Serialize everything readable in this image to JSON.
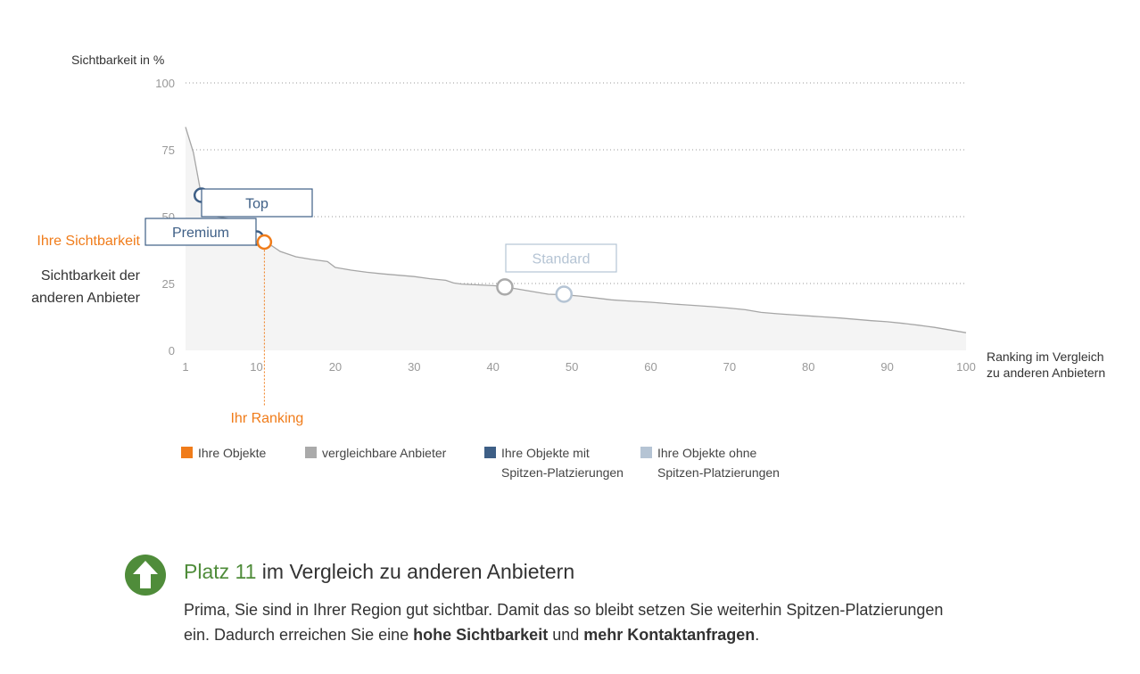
{
  "chart_data": {
    "type": "area",
    "ylabel": "Sichtbarkeit in %",
    "xlabel": "Ranking im Vergleich zu anderen Anbietern",
    "xlabel_lines": [
      "Ranking im Vergleich",
      "zu anderen Anbietern"
    ],
    "ylim": [
      0,
      100
    ],
    "xlim": [
      1,
      100
    ],
    "yticks": [
      0,
      25,
      50,
      75,
      100
    ],
    "xticks": [
      1,
      10,
      20,
      30,
      40,
      50,
      60,
      70,
      80,
      90,
      100
    ],
    "grid": true,
    "legend_position": "bottom",
    "series": [
      {
        "name": "vergleichbare Anbieter",
        "x": [
          1,
          2,
          3,
          4,
          5,
          6,
          7,
          8,
          9,
          10,
          11,
          12,
          13,
          15,
          17,
          19,
          20,
          21,
          22,
          24,
          26,
          28,
          30,
          32,
          34,
          35,
          36,
          38,
          40,
          41,
          43,
          45,
          47,
          49,
          51,
          53,
          55,
          57,
          60,
          63,
          66,
          68,
          70,
          72,
          74,
          76,
          78,
          80,
          82,
          84,
          86,
          88,
          90,
          92,
          94,
          95,
          96,
          98,
          100
        ],
        "y": [
          83.5,
          74,
          58,
          52,
          50,
          49.5,
          49,
          48.5,
          46,
          44,
          41,
          39,
          37,
          35,
          34,
          33.2,
          31,
          30.5,
          30,
          29.2,
          28.6,
          28.1,
          27.6,
          26.8,
          26.2,
          25.2,
          24.8,
          24.5,
          24.2,
          24,
          23,
          22,
          21,
          20.8,
          20.3,
          19.6,
          18.9,
          18.5,
          18,
          17.3,
          16.7,
          16.3,
          15.8,
          15.2,
          14.2,
          13.7,
          13.3,
          12.9,
          12.5,
          12.1,
          11.6,
          11.1,
          10.7,
          10.1,
          9.4,
          9,
          8.6,
          7.6,
          6.6
        ]
      }
    ],
    "markers": [
      {
        "name": "Top",
        "x": 3,
        "y": 58,
        "color": "#3e5f86",
        "callout": "Top"
      },
      {
        "name": "Premium",
        "x": 10,
        "y": 42,
        "color": "#3e5f86",
        "callout": "Premium"
      },
      {
        "name": "Ihre Sichtbarkeit",
        "x": 11,
        "y": 40.5,
        "color": "#f07c1a",
        "callout": ""
      },
      {
        "name": "Standard-Rank-41",
        "x": 41.5,
        "y": 23.7,
        "color": "#aaaaaa",
        "callout": ""
      },
      {
        "name": "Standard",
        "x": 49,
        "y": 21,
        "color": "#b5c4d4",
        "callout": "Standard"
      }
    ],
    "annotations": {
      "ihre_sichtbarkeit": "Ihre Sichtbarkeit",
      "sichtbarkeit_andere_lines": [
        "Sichtbarkeit der",
        "anderen Anbieter"
      ],
      "ihr_ranking": "Ihr Ranking",
      "your_rank": 11
    }
  },
  "colors": {
    "orange": "#f07c1a",
    "gray": "#aaaaaa",
    "darkblue": "#3e5f86",
    "lightblue": "#b5c4d4",
    "green": "#4f8c3a"
  },
  "legend": [
    {
      "label": "Ihre Objekte",
      "label2": "",
      "color": "#f07c1a"
    },
    {
      "label": "vergleichbare Anbieter",
      "label2": "",
      "color": "#aaaaaa"
    },
    {
      "label": "Ihre Objekte mit",
      "label2": "Spitzen-Platzierungen",
      "color": "#3e5f86"
    },
    {
      "label": "Ihre Objekte ohne",
      "label2": "Spitzen-Platzierungen",
      "color": "#b5c4d4"
    }
  ],
  "summary": {
    "icon": "arrow-up-icon",
    "title_highlight": "Platz 11",
    "title_rest": " im Vergleich zu anderen Anbietern",
    "text_part1": "Prima, Sie sind in Ihrer Region gut sichtbar. Damit das so bleibt setzen Sie weiterhin Spitzen-Platzierungen ein. Dadurch erreichen Sie eine ",
    "bold1": "hohe Sichtbarkeit",
    "text_part2": " und ",
    "bold2": "mehr Kontaktanfragen",
    "text_part3": "."
  }
}
